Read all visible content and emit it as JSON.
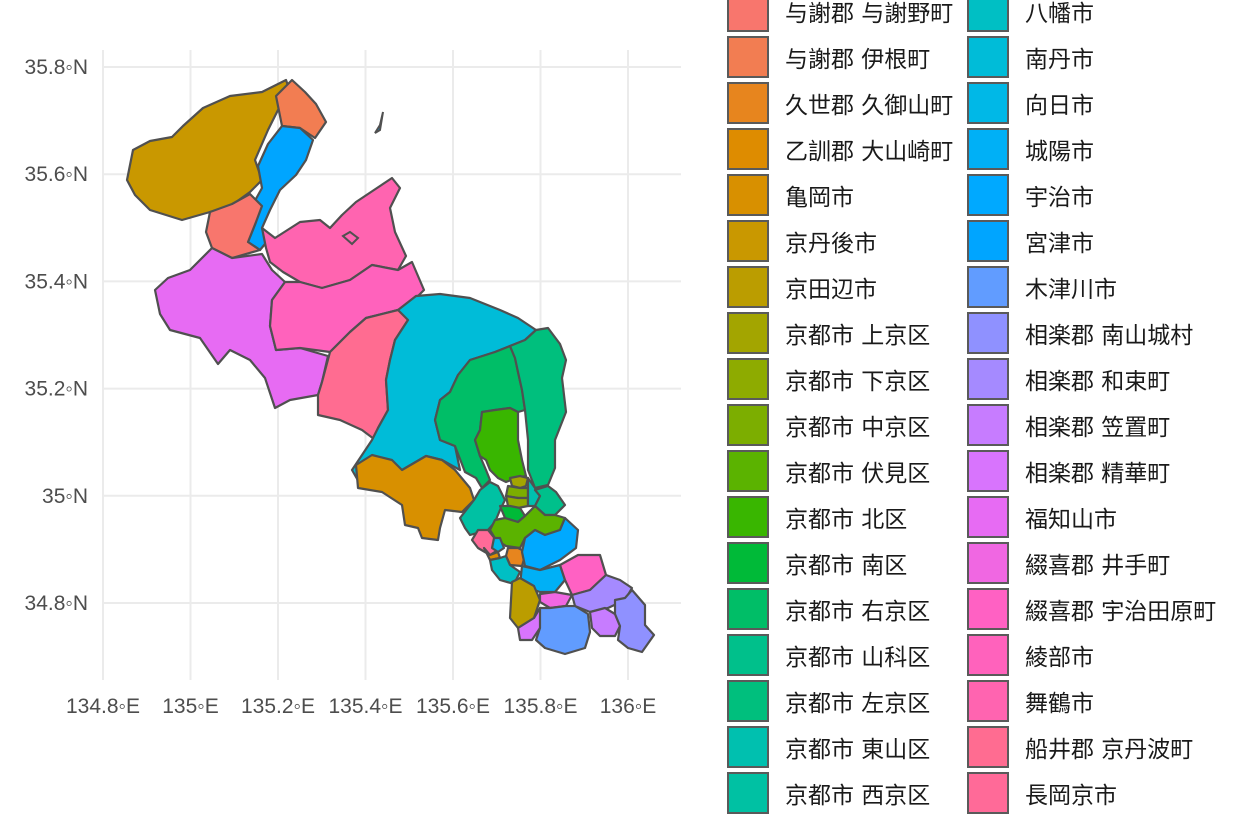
{
  "chart_data": {
    "type": "choropleth",
    "axes": {
      "x_ticks": [
        "134.8◦E",
        "135◦E",
        "135.2◦E",
        "135.4◦E",
        "135.6◦E",
        "135.8◦E",
        "136◦E"
      ],
      "x_values": [
        134.8,
        135.0,
        135.2,
        135.4,
        135.6,
        135.8,
        136.0
      ],
      "y_ticks": [
        "35.8◦N",
        "35.6◦N",
        "35.4◦N",
        "35.2◦N",
        "35◦N",
        "34.8◦N"
      ],
      "y_values": [
        35.8,
        35.6,
        35.4,
        35.2,
        35.0,
        34.8
      ],
      "grid": true
    },
    "legend": {
      "placement": "right",
      "columns": 2,
      "column1": [
        {
          "label": "与謝郡 与謝野町",
          "color": "#F8766D"
        },
        {
          "label": "与謝郡 伊根町",
          "color": "#F27D52"
        },
        {
          "label": "久世郡 久御山町",
          "color": "#E7851E"
        },
        {
          "label": "乙訓郡 大山崎町",
          "color": "#DE8C00"
        },
        {
          "label": "亀岡市",
          "color": "#D89000"
        },
        {
          "label": "京丹後市",
          "color": "#C99800"
        },
        {
          "label": "京田辺市",
          "color": "#BB9D00"
        },
        {
          "label": "京都市 上京区",
          "color": "#A3A500"
        },
        {
          "label": "京都市 下京区",
          "color": "#8EAB00"
        },
        {
          "label": "京都市 中京区",
          "color": "#7CAE00"
        },
        {
          "label": "京都市 伏見区",
          "color": "#5BB300"
        },
        {
          "label": "京都市 北区",
          "color": "#39B600"
        },
        {
          "label": "京都市 南区",
          "color": "#00BA38"
        },
        {
          "label": "京都市 右京区",
          "color": "#00BE67"
        },
        {
          "label": "京都市 山科区",
          "color": "#00C08B"
        },
        {
          "label": "京都市 左京区",
          "color": "#00BF7D"
        },
        {
          "label": "京都市 東山区",
          "color": "#00C0AF"
        },
        {
          "label": "京都市 西京区",
          "color": "#00C1A3"
        }
      ],
      "column2": [
        {
          "label": "八幡市",
          "color": "#00BFC4"
        },
        {
          "label": "南丹市",
          "color": "#00BCD8"
        },
        {
          "label": "向日市",
          "color": "#00B8E7"
        },
        {
          "label": "城陽市",
          "color": "#00B0F6"
        },
        {
          "label": "宇治市",
          "color": "#00A9FF"
        },
        {
          "label": "宮津市",
          "color": "#00A5FF"
        },
        {
          "label": "木津川市",
          "color": "#619CFF"
        },
        {
          "label": "相楽郡 南山城村",
          "color": "#8F91FF"
        },
        {
          "label": "相楽郡 和束町",
          "color": "#A58AFF"
        },
        {
          "label": "相楽郡 笠置町",
          "color": "#C77CFF"
        },
        {
          "label": "相楽郡 精華町",
          "color": "#D874FD"
        },
        {
          "label": "福知山市",
          "color": "#E76BF3"
        },
        {
          "label": "綴喜郡 井手町",
          "color": "#F067E2"
        },
        {
          "label": "綴喜郡 宇治田原町",
          "color": "#FF61C3"
        },
        {
          "label": "綾部市",
          "color": "#FF62BC"
        },
        {
          "label": "舞鶴市",
          "color": "#FF64B0"
        },
        {
          "label": "船井郡 京丹波町",
          "color": "#FF6C91"
        },
        {
          "label": "長岡京市",
          "color": "#FF6A98"
        }
      ]
    },
    "regions": [
      {
        "name": "京丹後市",
        "color": "#C99800"
      },
      {
        "name": "与謝郡 伊根町",
        "color": "#F27D52"
      },
      {
        "name": "宮津市",
        "color": "#00A5FF"
      },
      {
        "name": "与謝郡 与謝野町",
        "color": "#F8766D"
      },
      {
        "name": "舞鶴市",
        "color": "#FF64B0"
      },
      {
        "name": "福知山市",
        "color": "#E76BF3"
      },
      {
        "name": "綾部市",
        "color": "#FF62BC"
      },
      {
        "name": "船井郡 京丹波町",
        "color": "#FF6C91"
      },
      {
        "name": "南丹市",
        "color": "#00BCD8"
      },
      {
        "name": "京都市 右京区",
        "color": "#00BE67"
      },
      {
        "name": "京都市 左京区",
        "color": "#00BF7D"
      },
      {
        "name": "京都市 北区",
        "color": "#39B600"
      },
      {
        "name": "亀岡市",
        "color": "#D89000"
      },
      {
        "name": "京都市 西京区",
        "color": "#00C1A3"
      },
      {
        "name": "京都市 上京区",
        "color": "#A3A500"
      },
      {
        "name": "京都市 中京区",
        "color": "#7CAE00"
      },
      {
        "name": "京都市 下京区",
        "color": "#8EAB00"
      },
      {
        "name": "京都市 東山区",
        "color": "#00C0AF"
      },
      {
        "name": "京都市 山科区",
        "color": "#00C08B"
      },
      {
        "name": "京都市 南区",
        "color": "#00BA38"
      },
      {
        "name": "京都市 伏見区",
        "color": "#5BB300"
      },
      {
        "name": "長岡京市",
        "color": "#FF6A98"
      },
      {
        "name": "向日市",
        "color": "#00B8E7"
      },
      {
        "name": "乙訓郡 大山崎町",
        "color": "#DE8C00"
      },
      {
        "name": "久世郡 久御山町",
        "color": "#E7851E"
      },
      {
        "name": "八幡市",
        "color": "#00BFC4"
      },
      {
        "name": "宇治市",
        "color": "#00A9FF"
      },
      {
        "name": "城陽市",
        "color": "#00B0F6"
      },
      {
        "name": "綴喜郡 宇治田原町",
        "color": "#FF61C3"
      },
      {
        "name": "京田辺市",
        "color": "#BB9D00"
      },
      {
        "name": "綴喜郡 井手町",
        "color": "#F067E2"
      },
      {
        "name": "相楽郡 和束町",
        "color": "#A58AFF"
      },
      {
        "name": "相楽郡 精華町",
        "color": "#D874FD"
      },
      {
        "name": "木津川市",
        "color": "#619CFF"
      },
      {
        "name": "相楽郡 笠置町",
        "color": "#C77CFF"
      },
      {
        "name": "相楽郡 南山城村",
        "color": "#8F91FF"
      }
    ]
  }
}
